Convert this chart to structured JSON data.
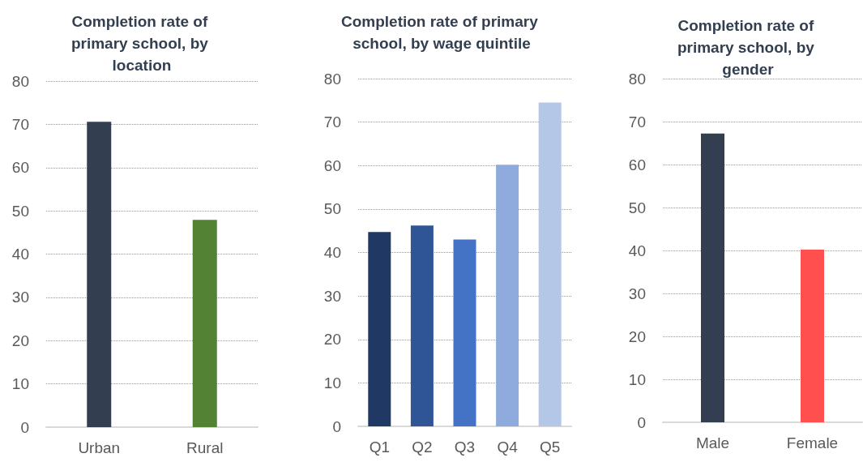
{
  "chart_data": [
    {
      "type": "bar",
      "title": "Completion rate of primary school, by location",
      "categories": [
        "Urban",
        "Rural"
      ],
      "values": [
        70.6,
        47.9
      ],
      "colors": [
        "#333f50",
        "#548235"
      ],
      "ylim": [
        0,
        80
      ],
      "yticks": [
        0,
        10,
        20,
        30,
        40,
        50,
        60,
        70,
        80
      ],
      "grid": "y"
    },
    {
      "type": "bar",
      "title": "Completion rate of primary school, by wage quintile",
      "categories": [
        "Q1",
        "Q2",
        "Q3",
        "Q4",
        "Q5"
      ],
      "values": [
        44.7,
        46.2,
        43.0,
        60.2,
        74.5
      ],
      "colors": [
        "#203864",
        "#2f5597",
        "#4472c4",
        "#8faadc",
        "#b4c7e7"
      ],
      "ylim": [
        0,
        80
      ],
      "yticks": [
        0,
        10,
        20,
        30,
        40,
        50,
        60,
        70,
        80
      ],
      "grid": "y"
    },
    {
      "type": "bar",
      "title": "Completion rate of primary school, by gender",
      "categories": [
        "Male",
        "Female"
      ],
      "values": [
        67.2,
        40.2
      ],
      "colors": [
        "#333f50",
        "#ff4f4f"
      ],
      "ylim": [
        0,
        80
      ],
      "yticks": [
        0,
        10,
        20,
        30,
        40,
        50,
        60,
        70,
        80
      ],
      "grid": "y"
    }
  ]
}
